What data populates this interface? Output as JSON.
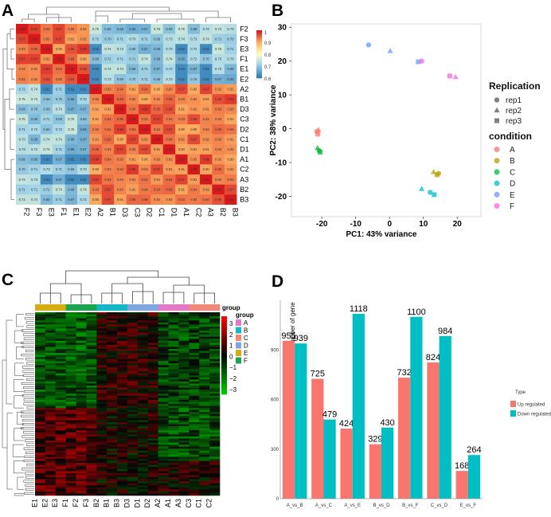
{
  "panels": {
    "a": {
      "label": "A"
    },
    "b": {
      "label": "B"
    },
    "c": {
      "label": "C"
    },
    "d": {
      "label": "D"
    }
  },
  "chart_data": [
    {
      "type": "heatmap",
      "panel": "A",
      "title": "",
      "rows": [
        "F2",
        "F3",
        "E3",
        "F1",
        "E1",
        "E2",
        "A2",
        "B1",
        "D3",
        "C3",
        "D2",
        "C1",
        "D1",
        "A1",
        "C2",
        "A3",
        "B2",
        "B3"
      ],
      "cols": [
        "F2",
        "F3",
        "E3",
        "F1",
        "E1",
        "E2",
        "A2",
        "B1",
        "D3",
        "C3",
        "D2",
        "C1",
        "D1",
        "A1",
        "C2",
        "A3",
        "B2",
        "B3"
      ],
      "groups": [
        "F",
        "F",
        "E",
        "F",
        "E",
        "E",
        "A",
        "B",
        "D",
        "C",
        "D",
        "C",
        "D",
        "A",
        "C",
        "A",
        "B",
        "B"
      ],
      "colorbar_ticks": [
        "1",
        "0.9",
        "0.8",
        "0.7",
        "0.6"
      ],
      "colorbar_range": [
        0.6,
        1
      ],
      "note": "pairwise sample correlation; values estimated: 1.0 on diagonal, ~0.97 within group, ~0.93 within major cluster, ~0.71 between clusters"
    },
    {
      "type": "scatter",
      "panel": "B",
      "xlabel": "PC1: 43% variance",
      "ylabel": "PC2: 38% variance",
      "xticks": [
        -20,
        -10,
        0,
        10,
        20
      ],
      "yticks": [
        -20,
        -10,
        0,
        10,
        20,
        30
      ],
      "xlim": [
        -29,
        27
      ],
      "ylim": [
        -26,
        31
      ],
      "legend_replication_title": "Replication",
      "legend_replication": [
        "rep1",
        "rep2",
        "rep3"
      ],
      "legend_condition_title": "condition",
      "legend_condition": [
        "A",
        "B",
        "C",
        "D",
        "E",
        "F"
      ],
      "colors": {
        "A": "#f8766d",
        "B": "#b79f00",
        "C": "#00ba38",
        "D": "#00bfc4",
        "E": "#619cff",
        "F": "#f564e3"
      },
      "points": [
        {
          "c": "A",
          "r": "rep1",
          "x": -21.5,
          "y": -0.8
        },
        {
          "c": "A",
          "r": "rep2",
          "x": -21.0,
          "y": -0.3
        },
        {
          "c": "A",
          "r": "rep3",
          "x": -21.2,
          "y": -1.6
        },
        {
          "c": "B",
          "r": "rep1",
          "x": 14.5,
          "y": -13.2
        },
        {
          "c": "B",
          "r": "rep2",
          "x": 13.0,
          "y": -12.8
        },
        {
          "c": "B",
          "r": "rep3",
          "x": 14.0,
          "y": -13.6
        },
        {
          "c": "C",
          "r": "rep1",
          "x": -20.8,
          "y": -6.5
        },
        {
          "c": "C",
          "r": "rep2",
          "x": -21.3,
          "y": -5.7
        },
        {
          "c": "C",
          "r": "rep3",
          "x": -20.5,
          "y": -6.9
        },
        {
          "c": "D",
          "r": "rep1",
          "x": 12.0,
          "y": -18.8
        },
        {
          "c": "D",
          "r": "rep2",
          "x": 9.5,
          "y": -17.8
        },
        {
          "c": "D",
          "r": "rep3",
          "x": 13.2,
          "y": -19.5
        },
        {
          "c": "E",
          "r": "rep1",
          "x": -6.2,
          "y": 24.8
        },
        {
          "c": "E",
          "r": "rep2",
          "x": 0.2,
          "y": 23.0
        },
        {
          "c": "E",
          "r": "rep3",
          "x": 8.5,
          "y": 19.8
        },
        {
          "c": "F",
          "r": "rep1",
          "x": 9.5,
          "y": 20.0
        },
        {
          "c": "F",
          "r": "rep2",
          "x": 19.5,
          "y": 15.3
        },
        {
          "c": "F",
          "r": "rep3",
          "x": 17.8,
          "y": 15.6
        }
      ]
    },
    {
      "type": "heatmap",
      "panel": "C",
      "columns": [
        "E1",
        "E2",
        "E3",
        "F1",
        "F2",
        "F3",
        "B2",
        "B1",
        "B3",
        "D3",
        "D1",
        "D2",
        "A2",
        "A1",
        "A3",
        "C3",
        "C1",
        "C2"
      ],
      "col_groups": [
        "E",
        "E",
        "E",
        "F",
        "F",
        "F",
        "B",
        "B",
        "B",
        "D",
        "D",
        "D",
        "A",
        "A",
        "A",
        "C",
        "C",
        "C"
      ],
      "group_legend_title": "group",
      "group_bar_label": "group",
      "groups": [
        "A",
        "B",
        "C",
        "D",
        "E",
        "F"
      ],
      "group_colors": {
        "A": "#e278c8",
        "B": "#13b7c5",
        "C": "#ef8878",
        "D": "#7fa7de",
        "E": "#d4ad12",
        "F": "#1ea451"
      },
      "colorbar_ticks": [
        "3",
        "2",
        "1",
        "0",
        "−1",
        "−2",
        "−3"
      ],
      "colorbar_range": [
        -3,
        3
      ]
    },
    {
      "type": "bar",
      "panel": "D",
      "ylabel": "Number of gene",
      "categories": [
        "A_vs_B",
        "A_vs_C",
        "A_vs_E",
        "B_vs_D",
        "B_vs_F",
        "C_vs_D",
        "E_vs_F"
      ],
      "yticks": [
        0,
        300,
        600,
        900
      ],
      "ylim": [
        0,
        1200
      ],
      "legend_title": "Type",
      "series": [
        {
          "name": "Up regulated",
          "color": "#f8766d",
          "values": [
            955,
            725,
            424,
            329,
            732,
            824,
            168
          ]
        },
        {
          "name": "Down regulated",
          "color": "#00bfc4",
          "values": [
            939,
            479,
            1118,
            430,
            1100,
            984,
            264
          ]
        }
      ]
    }
  ]
}
